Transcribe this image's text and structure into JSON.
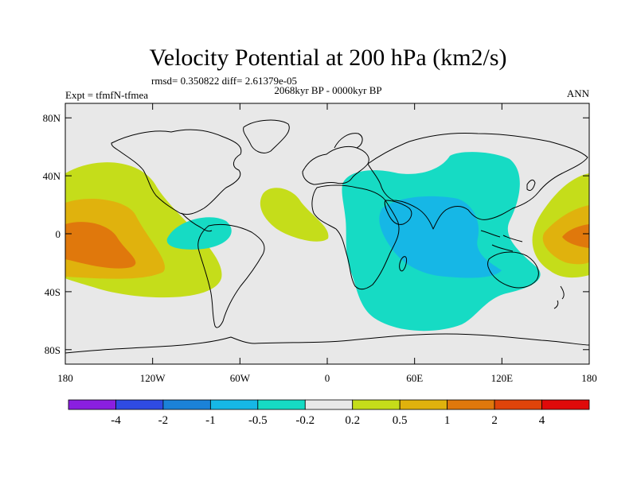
{
  "title": "Velocity Potential at 200 hPa (km2/s)",
  "stats": "rmsd= 0.350822 diff= 2.61379e-05",
  "period": "2068kyr BP - 0000kyr BP",
  "experiment": "Expt = tfmfN-tfmea",
  "season": "ANN",
  "x_ticks": [
    {
      "lon": -180,
      "label": "180"
    },
    {
      "lon": -120,
      "label": "120W"
    },
    {
      "lon": -60,
      "label": "60W"
    },
    {
      "lon": 0,
      "label": "0"
    },
    {
      "lon": 60,
      "label": "60E"
    },
    {
      "lon": 120,
      "label": "120E"
    },
    {
      "lon": 180,
      "label": "180"
    }
  ],
  "y_ticks": [
    {
      "lat": 80,
      "label": "80N"
    },
    {
      "lat": 40,
      "label": "40N"
    },
    {
      "lat": 0,
      "label": "0"
    },
    {
      "lat": -40,
      "label": "40S"
    },
    {
      "lat": -80,
      "label": "80S"
    }
  ],
  "colorbar": {
    "colors": [
      "#8a1fe0",
      "#2f4be3",
      "#1b82d8",
      "#16b7e6",
      "#16dbc4",
      "#e8e8e8",
      "#c5dd1a",
      "#e0b20d",
      "#e0780c",
      "#e0440a",
      "#e00a0a"
    ],
    "tick_labels": [
      "-4",
      "-2",
      "-1",
      "-0.5",
      "-0.2",
      "0.2",
      "0.5",
      "1",
      "2",
      "4"
    ]
  },
  "chart_data": {
    "type": "contour-map",
    "variable": "Velocity Potential at 200 hPa",
    "units": "km2/s",
    "levels": [
      -4,
      -2,
      -1,
      -0.5,
      -0.2,
      0.2,
      0.5,
      1,
      2,
      4
    ],
    "lon_range": [
      -180,
      180
    ],
    "lat_range": [
      -90,
      90
    ],
    "features": [
      {
        "region": "central Pacific",
        "lon": -160,
        "lat": 0,
        "sign": "positive",
        "peak_level": "1 to 2"
      },
      {
        "region": "western Pacific",
        "lon": 170,
        "lat": 0,
        "sign": "positive",
        "peak_level": "1 to 2"
      },
      {
        "region": "tropical Atlantic",
        "lon": -35,
        "lat": 15,
        "sign": "positive",
        "peak_level": "0.2 to 0.5"
      },
      {
        "region": "northern South America",
        "lon": -70,
        "lat": 0,
        "sign": "negative",
        "peak_level": "-0.5 to -0.2"
      },
      {
        "region": "Indian Ocean",
        "lon": 70,
        "lat": -5,
        "sign": "negative",
        "peak_level": "-1 to -0.5"
      }
    ]
  }
}
